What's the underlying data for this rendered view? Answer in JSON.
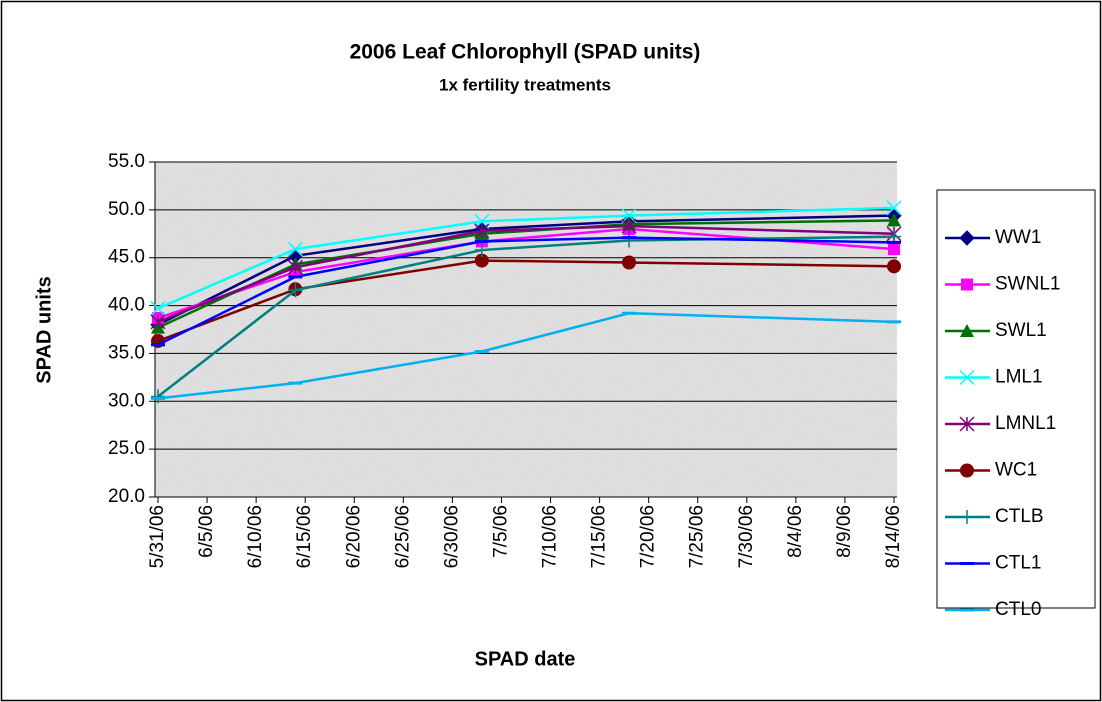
{
  "chart_data": {
    "type": "line",
    "title": "2006 Leaf Chlorophyll (SPAD units)",
    "subtitle": "1x fertility treatments",
    "x_label": "SPAD date",
    "y_label": "SPAD units",
    "x": [
      "5/31/06",
      "6/14/06",
      "7/3/06",
      "7/18/06",
      "8/14/06"
    ],
    "xlim": [
      "5/31/06",
      "8/14/06"
    ],
    "xticks": [
      "5/31/06",
      "6/5/06",
      "6/10/06",
      "6/15/06",
      "6/20/06",
      "6/25/06",
      "6/30/06",
      "7/5/06",
      "7/10/06",
      "7/15/06",
      "7/20/06",
      "7/25/06",
      "7/30/06",
      "8/4/06",
      "8/9/06",
      "8/14/06"
    ],
    "ylim": [
      20,
      55
    ],
    "yticks": [
      {
        "value": 20,
        "label": "20.0"
      },
      {
        "value": 25,
        "label": "25.0"
      },
      {
        "value": 30,
        "label": "30.0"
      },
      {
        "value": 35,
        "label": "35.0"
      },
      {
        "value": 40,
        "label": "40.0"
      },
      {
        "value": 45,
        "label": "45.0"
      },
      {
        "value": 50,
        "label": "50.0"
      },
      {
        "value": 55,
        "label": "55.0"
      }
    ],
    "grid": true,
    "legend": "right",
    "series": [
      {
        "name": "WW1",
        "color": "#000080",
        "marker": "diamond",
        "values": [
          38.0,
          45.2,
          48.0,
          48.8,
          49.4
        ]
      },
      {
        "name": "SWNL1",
        "color": "#ff00ff",
        "marker": "square",
        "values": [
          38.7,
          43.5,
          46.7,
          48.0,
          45.9
        ]
      },
      {
        "name": "SWL1",
        "color": "#007000",
        "marker": "triangle",
        "values": [
          37.7,
          44.3,
          47.5,
          48.5,
          48.9
        ]
      },
      {
        "name": "LML1",
        "color": "#00ffff",
        "marker": "x",
        "values": [
          39.7,
          45.9,
          48.8,
          49.4,
          50.2
        ]
      },
      {
        "name": "LMNL1",
        "color": "#800080",
        "marker": "star",
        "values": [
          38.3,
          44.0,
          47.8,
          48.3,
          47.5
        ]
      },
      {
        "name": "WC1",
        "color": "#800000",
        "marker": "circle",
        "values": [
          36.3,
          41.7,
          44.7,
          44.5,
          44.1
        ]
      },
      {
        "name": "CTLB",
        "color": "#008080",
        "marker": "plus",
        "values": [
          30.5,
          41.6,
          45.8,
          46.8,
          47.2
        ]
      },
      {
        "name": "CTL1",
        "color": "#0000ff",
        "marker": "dash",
        "values": [
          35.9,
          43.0,
          46.7,
          47.1,
          46.6
        ]
      },
      {
        "name": "CTL0",
        "color": "#00b0f0",
        "marker": "dash",
        "values": [
          30.3,
          31.9,
          35.2,
          39.2,
          38.3
        ]
      }
    ]
  }
}
